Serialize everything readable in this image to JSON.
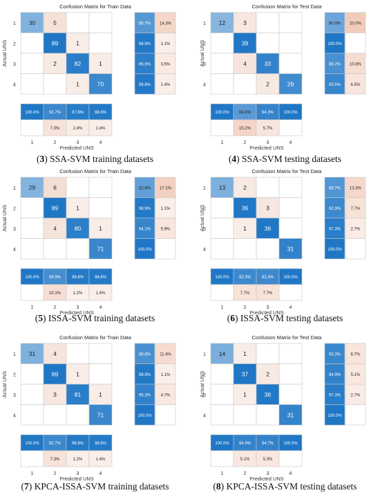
{
  "chart_data": [
    {
      "type": "heatmap",
      "title": "Confusion Matrix for Train Data",
      "xlabel": "Predicted UNS",
      "ylabel": "Actual UNS",
      "classes": [
        "1",
        "2",
        "3",
        "4"
      ],
      "matrix": [
        [
          30,
          5,
          null,
          null
        ],
        [
          null,
          89,
          1,
          null
        ],
        [
          null,
          2,
          82,
          1
        ],
        [
          null,
          null,
          1,
          70
        ]
      ],
      "row_summary": [
        [
          "85.7%",
          "14.3%"
        ],
        [
          "98.9%",
          "1.1%"
        ],
        [
          "96.5%",
          "3.5%"
        ],
        [
          "98.6%",
          "1.4%"
        ]
      ],
      "col_summary": [
        [
          "100.0%",
          "92.7%",
          "97.6%",
          "98.6%"
        ],
        [
          "",
          "7.3%",
          "2.4%",
          "1.4%"
        ]
      ],
      "caption_num": "3",
      "caption_text": " SSA-SVM training datasets"
    },
    {
      "type": "heatmap",
      "title": "Confusion Matrix for Test Data",
      "xlabel": "Predicted UNS",
      "ylabel": "Actual UNS",
      "classes": [
        "1",
        "2",
        "3",
        "4"
      ],
      "matrix": [
        [
          12,
          3,
          null,
          null
        ],
        [
          null,
          39,
          null,
          null
        ],
        [
          null,
          4,
          33,
          null
        ],
        [
          null,
          null,
          2,
          29
        ]
      ],
      "row_summary": [
        [
          "80.0%",
          "20.0%"
        ],
        [
          "100.0%",
          ""
        ],
        [
          "89.2%",
          "10.8%"
        ],
        [
          "93.5%",
          "6.5%"
        ]
      ],
      "col_summary": [
        [
          "100.0%",
          "84.8%",
          "94.3%",
          "100.0%"
        ],
        [
          "",
          "15.2%",
          "5.7%",
          ""
        ]
      ],
      "caption_num": "4",
      "caption_text": " SSA-SVM testing datasets"
    },
    {
      "type": "heatmap",
      "title": "Confusion Matrix for Train Data",
      "xlabel": "Predicted UNS",
      "ylabel": "Actual UNS",
      "classes": [
        "1",
        "2",
        "3",
        "4"
      ],
      "matrix": [
        [
          29,
          6,
          null,
          null
        ],
        [
          null,
          89,
          1,
          null
        ],
        [
          null,
          4,
          80,
          1
        ],
        [
          null,
          null,
          null,
          71
        ]
      ],
      "row_summary": [
        [
          "82.9%",
          "17.1%"
        ],
        [
          "98.9%",
          "1.1%"
        ],
        [
          "94.1%",
          "5.9%"
        ],
        [
          "100.0%",
          ""
        ]
      ],
      "col_summary": [
        [
          "100.0%",
          "89.9%",
          "98.8%",
          "98.6%"
        ],
        [
          "",
          "10.1%",
          "1.2%",
          "1.4%"
        ]
      ],
      "caption_num": "5",
      "caption_text": " ISSA-SVM training datasets"
    },
    {
      "type": "heatmap",
      "title": "Confusion Matrix for Test Data",
      "xlabel": "Predicted UNS",
      "ylabel": "Actual UNS",
      "classes": [
        "1",
        "2",
        "3",
        "4"
      ],
      "matrix": [
        [
          13,
          2,
          null,
          null
        ],
        [
          null,
          36,
          3,
          null
        ],
        [
          null,
          1,
          36,
          null
        ],
        [
          null,
          null,
          null,
          31
        ]
      ],
      "row_summary": [
        [
          "86.7%",
          "13.3%"
        ],
        [
          "92.3%",
          "7.7%"
        ],
        [
          "97.3%",
          "2.7%"
        ],
        [
          "100.0%",
          ""
        ]
      ],
      "col_summary": [
        [
          "100.0%",
          "92.3%",
          "92.3%",
          "100.0%"
        ],
        [
          "",
          "7.7%",
          "7.7%",
          ""
        ]
      ],
      "caption_num": "6",
      "caption_text": " ISSA-SVM testing datasets"
    },
    {
      "type": "heatmap",
      "title": "Confusion Matrix for Train Data",
      "xlabel": "Predicted UNS",
      "ylabel": "Actual UNS",
      "classes": [
        "1",
        "2",
        "3",
        "4"
      ],
      "matrix": [
        [
          31,
          4,
          null,
          null
        ],
        [
          null,
          89,
          1,
          null
        ],
        [
          null,
          3,
          81,
          1
        ],
        [
          null,
          null,
          null,
          71
        ]
      ],
      "row_summary": [
        [
          "88.6%",
          "11.4%"
        ],
        [
          "98.9%",
          "1.1%"
        ],
        [
          "95.3%",
          "4.7%"
        ],
        [
          "100.0%",
          ""
        ]
      ],
      "col_summary": [
        [
          "100.0%",
          "92.7%",
          "98.8%",
          "98.6%"
        ],
        [
          "",
          "7.3%",
          "1.2%",
          "1.4%"
        ]
      ],
      "caption_num": "7",
      "caption_text": " KPCA-ISSA-SVM training datasets"
    },
    {
      "type": "heatmap",
      "title": "Confusion Matrix for Test Data",
      "xlabel": "Predicted UNS",
      "ylabel": "Actual UNS",
      "classes": [
        "1",
        "2",
        "3",
        "4"
      ],
      "matrix": [
        [
          14,
          1,
          null,
          null
        ],
        [
          null,
          37,
          2,
          null
        ],
        [
          null,
          1,
          36,
          null
        ],
        [
          null,
          null,
          null,
          31
        ]
      ],
      "row_summary": [
        [
          "93.3%",
          "6.7%"
        ],
        [
          "94.9%",
          "5.1%"
        ],
        [
          "97.3%",
          "2.7%"
        ],
        [
          "100.0%",
          ""
        ]
      ],
      "col_summary": [
        [
          "100.0%",
          "94.9%",
          "94.7%",
          "100.0%"
        ],
        [
          "",
          "5.1%",
          "5.3%",
          ""
        ]
      ],
      "caption_num": "8",
      "caption_text": " KPCA-ISSA-SVM testing datasets"
    }
  ]
}
